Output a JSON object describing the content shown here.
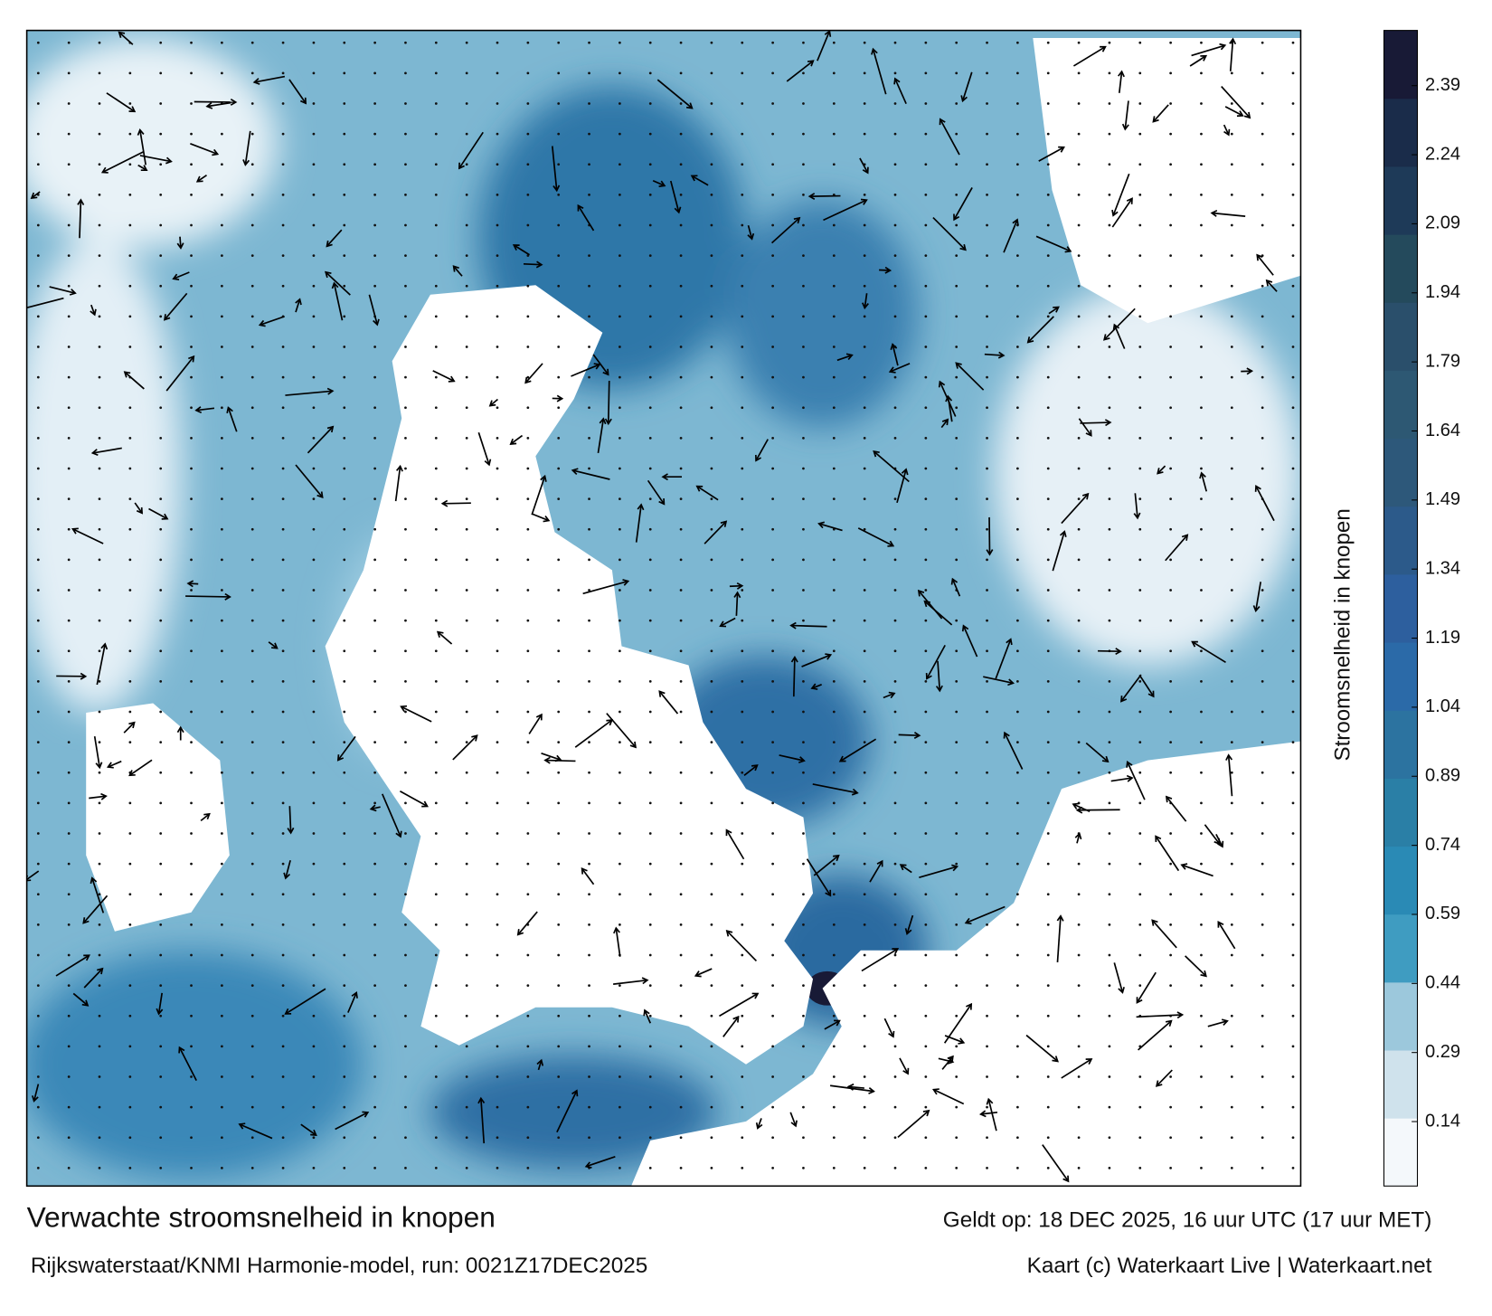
{
  "chart_data": {
    "type": "colormap",
    "title": "Verwachte stroomsnelheid in knopen",
    "subtitle": "Rijkswaterstaat/KNMI Harmonie-model, run: 0021Z17DEC2025",
    "valid_time": "Geldt op: 18 DEC 2025, 16 uur UTC (17 uur MET)",
    "credit": "Kaart (c) Waterkaart Live | Waterkaart.net",
    "colorbar_label": "Stroomsnelheid in knopen",
    "ylim": [
      0,
      2.51
    ],
    "yticks": [
      0.14,
      0.29,
      0.44,
      0.59,
      0.74,
      0.89,
      1.04,
      1.19,
      1.34,
      1.49,
      1.64,
      1.79,
      1.94,
      2.09,
      2.24,
      2.39
    ],
    "colors": [
      "#f4f8fb",
      "#cfe2ec",
      "#9cc8dc",
      "#3f9cc1",
      "#2a8ab5",
      "#2a7fa6",
      "#2c73a0",
      "#2b6aa8",
      "#2d5f9e",
      "#2c5a8a",
      "#2d587a",
      "#2d5873",
      "#2a4f6b",
      "#244a5c",
      "#1e3a58",
      "#1a2c4a",
      "#181a36"
    ]
  }
}
